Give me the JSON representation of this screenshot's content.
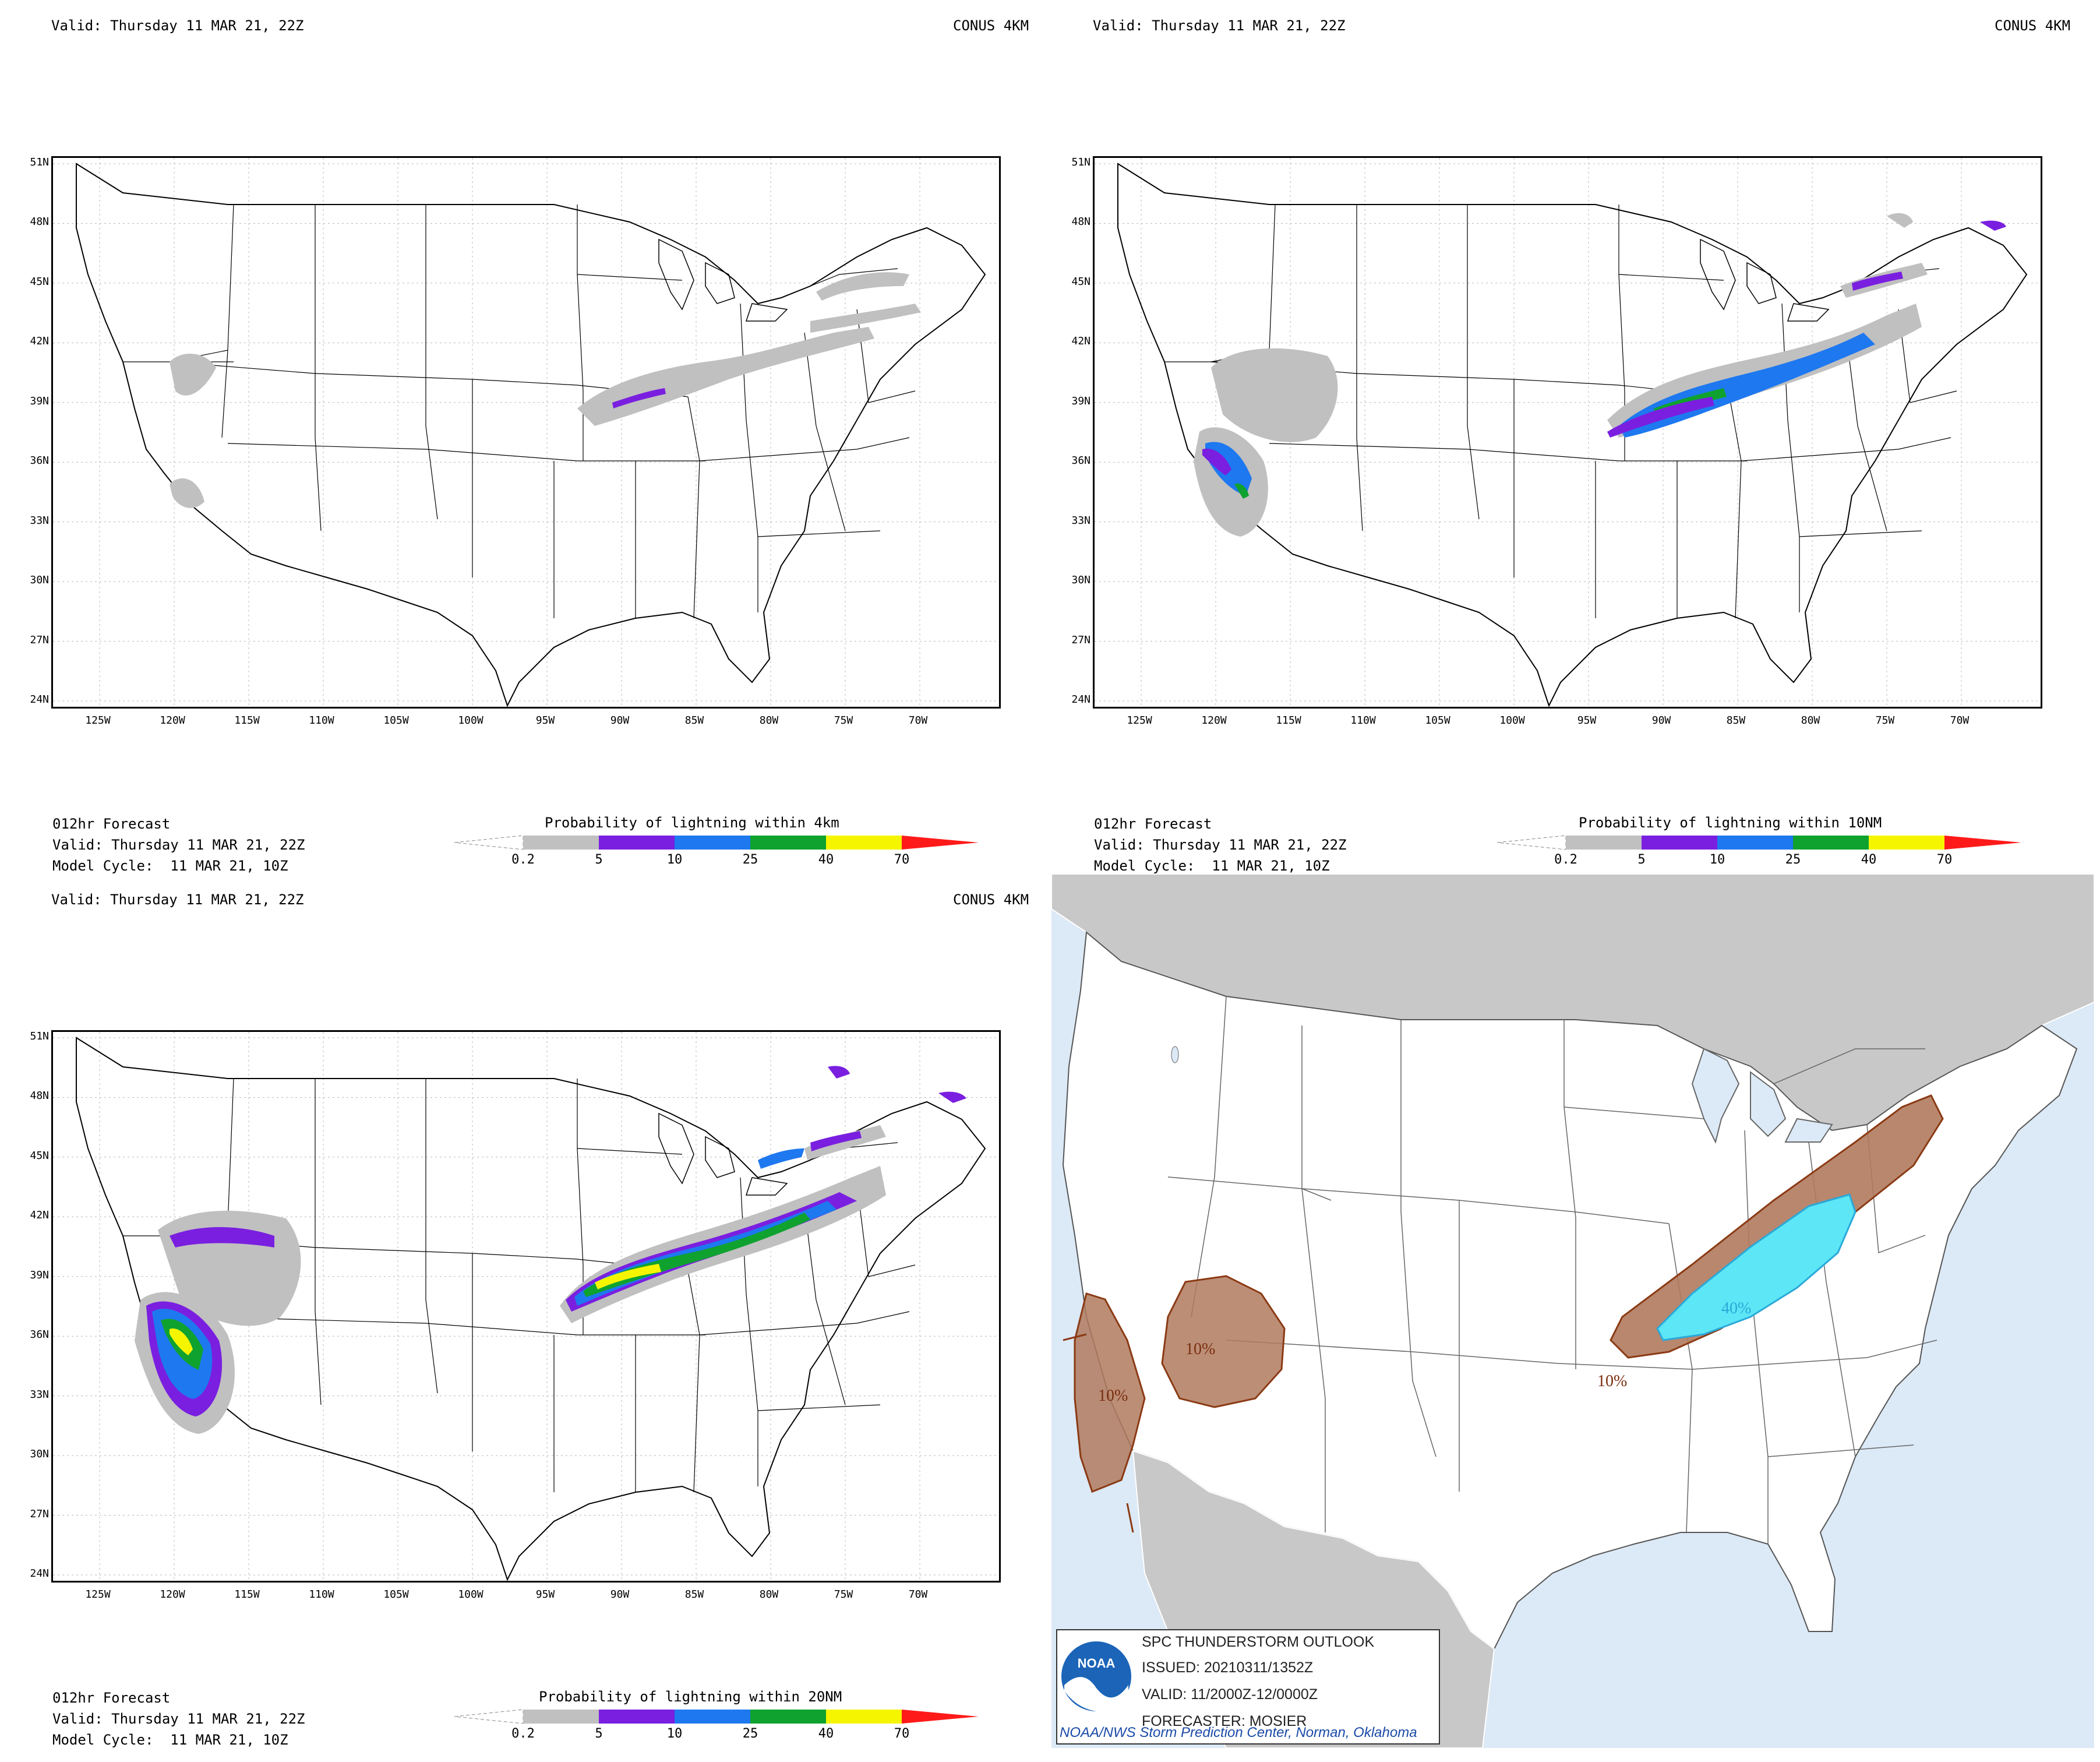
{
  "panels": [
    {
      "valid_header": "Valid: Thursday 11 MAR 21, 22Z",
      "domain_label": "CONUS 4KM",
      "lat_labels": [
        "51N",
        "48N",
        "45N",
        "42N",
        "39N",
        "36N",
        "33N",
        "30N",
        "27N",
        "24N"
      ],
      "lon_labels": [
        "125W",
        "120W",
        "115W",
        "110W",
        "105W",
        "100W",
        "95W",
        "90W",
        "85W",
        "80W",
        "75W",
        "70W"
      ],
      "forecast": "012hr Forecast",
      "valid_footer": "Valid: Thursday 11 MAR 21, 22Z",
      "model_cycle": "Model Cycle:  11 MAR 21, 10Z",
      "colorbar_title": "Probability of lightning within 4km"
    },
    {
      "valid_header": "Valid: Thursday 11 MAR 21, 22Z",
      "domain_label": "CONUS 4KM",
      "lat_labels": [
        "51N",
        "48N",
        "45N",
        "42N",
        "39N",
        "36N",
        "33N",
        "30N",
        "27N",
        "24N"
      ],
      "lon_labels": [
        "125W",
        "120W",
        "115W",
        "110W",
        "105W",
        "100W",
        "95W",
        "90W",
        "85W",
        "80W",
        "75W",
        "70W"
      ],
      "forecast": "012hr Forecast",
      "valid_footer": "Valid: Thursday 11 MAR 21, 22Z",
      "model_cycle": "Model Cycle:  11 MAR 21, 10Z",
      "colorbar_title": "Probability of lightning  within 10NM"
    },
    {
      "valid_header": "Valid: Thursday 11 MAR 21, 22Z",
      "domain_label": "CONUS 4KM",
      "lat_labels": [
        "51N",
        "48N",
        "45N",
        "42N",
        "39N",
        "36N",
        "33N",
        "30N",
        "27N",
        "24N"
      ],
      "lon_labels": [
        "125W",
        "120W",
        "115W",
        "110W",
        "105W",
        "100W",
        "95W",
        "90W",
        "85W",
        "80W",
        "75W",
        "70W"
      ],
      "forecast": "012hr Forecast",
      "valid_footer": "Valid: Thursday 11 MAR 21, 22Z",
      "model_cycle": "Model Cycle:  11 MAR 21, 10Z",
      "colorbar_title": "Probability of lightning within 20NM"
    }
  ],
  "colorbar": {
    "labels": [
      "0.2",
      "5",
      "10",
      "25",
      "40",
      "70"
    ],
    "colors": [
      "#c0c0c0",
      "#7a1fe0",
      "#1e78f0",
      "#0fa22f",
      "#f5f500",
      "#ff1a1a"
    ]
  },
  "spc": {
    "title": "SPC THUNDERSTORM OUTLOOK",
    "issued": "ISSUED: 20210311/1352Z",
    "valid": "VALID: 11/2000Z-12/0000Z",
    "forecaster": "FORECASTER: MOSIER",
    "credit": "NOAA/NWS Storm Prediction Center, Norman, Oklahoma",
    "logo_text": "NOAA",
    "area_labels": [
      "10%",
      "10%",
      "10%",
      "40%"
    ],
    "colors": {
      "ten_fill": "#b07a5e",
      "ten_line": "#8b3a14",
      "forty_fill": "#5de6f6",
      "forty_line": "#2aa8d8"
    }
  }
}
